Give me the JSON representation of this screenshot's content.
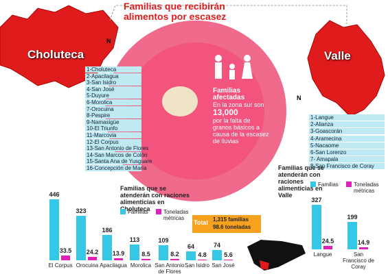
{
  "header": {
    "title": "Familias que recibirán alimentos por escasez"
  },
  "maps": [
    {
      "label": "Choluteca",
      "compass": "N",
      "items": [
        "1-Choluteca",
        "2-Apacilagua",
        "3-San Isidro",
        "4-San José",
        "5-Duyure",
        "6-Morolica",
        "7-Orocuina",
        "8-Pespire",
        "9-Namasigüe",
        "10-El Triunfo",
        "11-Marcovia",
        "12-El Corpus",
        "13-San Antonio de Flores",
        "14-San Marcos de Colón",
        "15-Santa Ana de Yusguare",
        "16-Concepción de María"
      ]
    },
    {
      "label": "Valle",
      "compass": "N",
      "items": [
        "1-Langue",
        "2-Alianza",
        "3-Goascorán",
        "4-Aramecina",
        "5-Nacaome",
        "6-San Lorenzo",
        "7- Amapala",
        "8-San Francisco de Coray"
      ]
    }
  ],
  "plate": {
    "heading": "Familias afectadas",
    "lines": [
      "En la zona sur son",
      "13,000",
      "por la falta de granos básicos a causa de la escasez de lluvias"
    ]
  },
  "total": {
    "label": "Total",
    "lines": [
      "1,315 familias",
      "98.6 toneladas"
    ]
  },
  "chart_data": [
    {
      "type": "bar",
      "title": "Familias que se atenderán con raciones alimenticias en Choluteca",
      "categories": [
        "El Corpus",
        "Orocuina",
        "Apacilagua",
        "Morolica",
        "San Antonio de Flores",
        "San Isidro",
        "San José"
      ],
      "series": [
        {
          "name": "Familias",
          "color": "#35c8e6",
          "values": [
            446,
            323,
            186,
            113,
            109,
            64,
            74
          ]
        },
        {
          "name": "Toneladas métricas",
          "color": "#e020b8",
          "values": [
            33.5,
            24.2,
            13.9,
            8.5,
            8.2,
            4.8,
            5.6
          ]
        }
      ]
    },
    {
      "type": "bar",
      "title": "Familias que se atenderán con raciones alimenticias en Valle",
      "categories": [
        "Langue",
        "San Francisco de Coray"
      ],
      "series": [
        {
          "name": "Familias",
          "color": "#35c8e6",
          "values": [
            327,
            199
          ]
        },
        {
          "name": "Toneladas métricas",
          "color": "#e020b8",
          "values": [
            24.5,
            14.9
          ]
        }
      ]
    }
  ]
}
